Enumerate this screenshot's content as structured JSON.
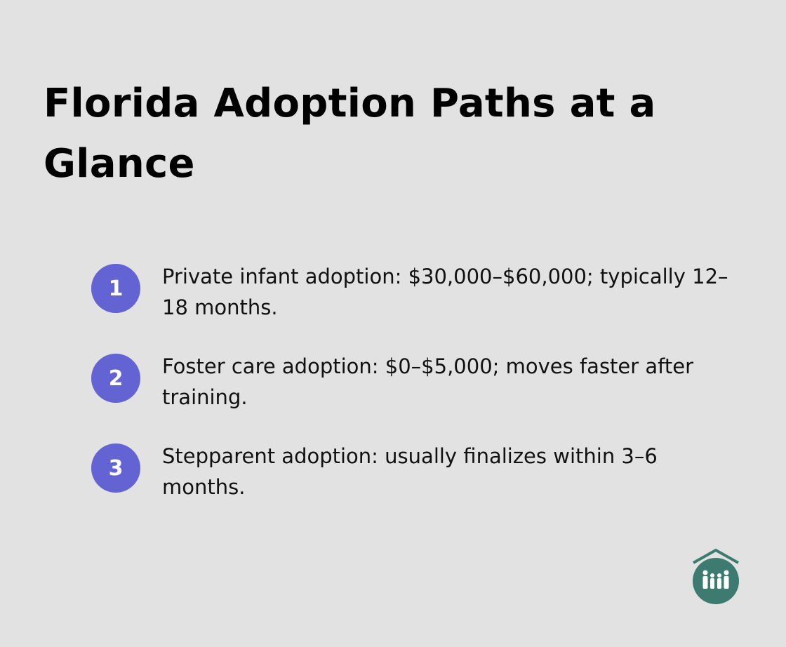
{
  "header": {
    "title": "Florida Adoption Paths at a Glance"
  },
  "items": [
    {
      "number": "1",
      "text": "Private infant adoption: $30,000–$60,000; typically 12–18 months."
    },
    {
      "number": "2",
      "text": "Foster care adoption: $0–$5,000; moves faster after training."
    },
    {
      "number": "3",
      "text": "Stepparent adoption: usually finalizes within 3–6 months."
    }
  ]
}
